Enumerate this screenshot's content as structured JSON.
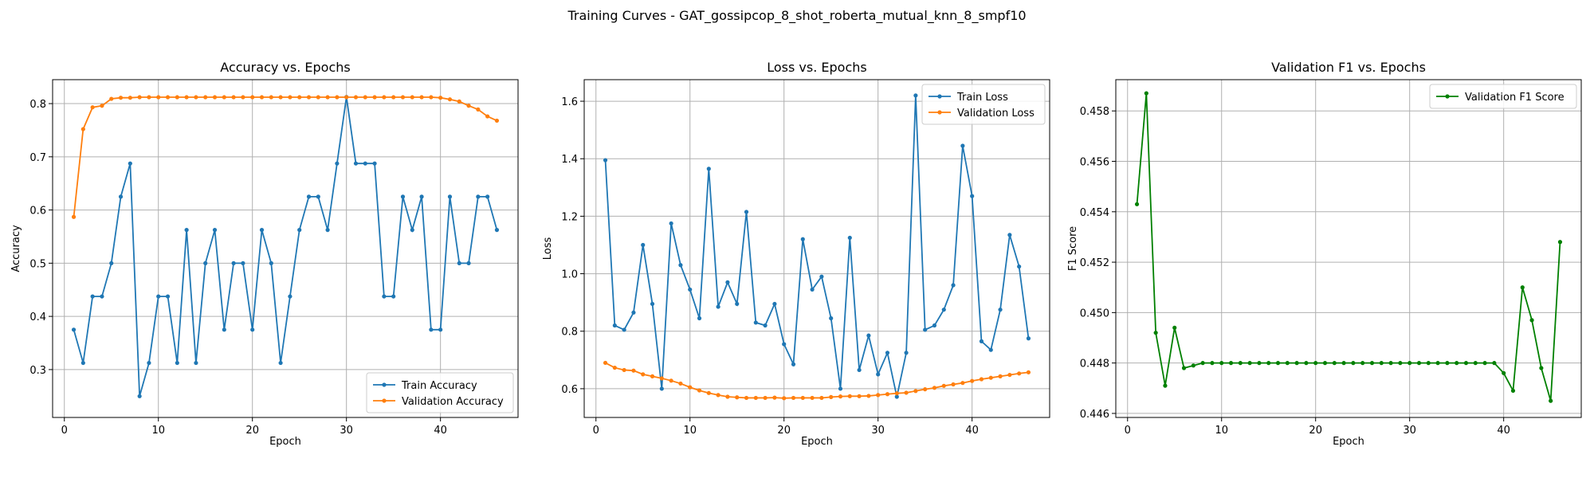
{
  "figure": {
    "title": "Training Curves - GAT_gossipcop_8_shot_roberta_mutual_knn_8_smpf10"
  },
  "colors": {
    "blue": "#1f77b4",
    "orange": "#ff7f0e",
    "green": "#008000"
  },
  "chart_data": [
    {
      "type": "line",
      "title": "Accuracy vs. Epochs",
      "xlabel": "Epoch",
      "ylabel": "Accuracy",
      "xlim": [
        -1.25,
        48.25
      ],
      "ylim": [
        0.21,
        0.845
      ],
      "xticks": [
        0,
        10,
        20,
        30,
        40
      ],
      "yticks": [
        0.3,
        0.4,
        0.5,
        0.6,
        0.7,
        0.8
      ],
      "ytick_labels": [
        "0.3",
        "0.4",
        "0.5",
        "0.6",
        "0.7",
        "0.8"
      ],
      "grid": true,
      "legend_position": "lower-right",
      "x": [
        1,
        2,
        3,
        4,
        5,
        6,
        7,
        8,
        9,
        10,
        11,
        12,
        13,
        14,
        15,
        16,
        17,
        18,
        19,
        20,
        21,
        22,
        23,
        24,
        25,
        26,
        27,
        28,
        29,
        30,
        31,
        32,
        33,
        34,
        35,
        36,
        37,
        38,
        39,
        40,
        41,
        42,
        43,
        44,
        45,
        46
      ],
      "series": [
        {
          "name": "Train Accuracy",
          "color": "#1f77b4",
          "values": [
            0.375,
            0.3125,
            0.4375,
            0.4375,
            0.5,
            0.625,
            0.6875,
            0.25,
            0.3125,
            0.4375,
            0.4375,
            0.3125,
            0.5625,
            0.3125,
            0.5,
            0.5625,
            0.375,
            0.5,
            0.5,
            0.375,
            0.5625,
            0.5,
            0.3125,
            0.4375,
            0.5625,
            0.625,
            0.625,
            0.5625,
            0.6875,
            0.8125,
            0.6875,
            0.6875,
            0.6875,
            0.4375,
            0.4375,
            0.625,
            0.5625,
            0.625,
            0.375,
            0.375,
            0.625,
            0.5,
            0.5,
            0.625,
            0.625,
            0.5625
          ]
        },
        {
          "name": "Validation Accuracy",
          "color": "#ff7f0e",
          "values": [
            0.587,
            0.752,
            0.793,
            0.796,
            0.809,
            0.811,
            0.811,
            0.812,
            0.812,
            0.812,
            0.812,
            0.812,
            0.812,
            0.812,
            0.812,
            0.812,
            0.812,
            0.812,
            0.812,
            0.812,
            0.812,
            0.812,
            0.812,
            0.812,
            0.812,
            0.812,
            0.812,
            0.812,
            0.812,
            0.812,
            0.812,
            0.812,
            0.812,
            0.812,
            0.812,
            0.812,
            0.812,
            0.812,
            0.812,
            0.811,
            0.808,
            0.804,
            0.796,
            0.789,
            0.776,
            0.768
          ]
        }
      ]
    },
    {
      "type": "line",
      "title": "Loss vs. Epochs",
      "xlabel": "Epoch",
      "ylabel": "Loss",
      "xlim": [
        -1.25,
        48.25
      ],
      "ylim": [
        0.5,
        1.675
      ],
      "xticks": [
        0,
        10,
        20,
        30,
        40
      ],
      "yticks": [
        0.6,
        0.8,
        1.0,
        1.2,
        1.4,
        1.6
      ],
      "ytick_labels": [
        "0.6",
        "0.8",
        "1.0",
        "1.2",
        "1.4",
        "1.6"
      ],
      "grid": true,
      "legend_position": "upper-right",
      "x": [
        1,
        2,
        3,
        4,
        5,
        6,
        7,
        8,
        9,
        10,
        11,
        12,
        13,
        14,
        15,
        16,
        17,
        18,
        19,
        20,
        21,
        22,
        23,
        24,
        25,
        26,
        27,
        28,
        29,
        30,
        31,
        32,
        33,
        34,
        35,
        36,
        37,
        38,
        39,
        40,
        41,
        42,
        43,
        44,
        45,
        46
      ],
      "series": [
        {
          "name": "Train Loss",
          "color": "#1f77b4",
          "values": [
            1.395,
            0.82,
            0.805,
            0.865,
            1.1,
            0.895,
            0.6,
            1.175,
            1.03,
            0.945,
            0.845,
            1.365,
            0.885,
            0.97,
            0.895,
            1.215,
            0.83,
            0.82,
            0.895,
            0.755,
            0.685,
            1.12,
            0.945,
            0.99,
            0.845,
            0.6,
            1.125,
            0.665,
            0.785,
            0.65,
            0.725,
            0.572,
            0.725,
            1.62,
            0.805,
            0.82,
            0.875,
            0.96,
            1.445,
            1.27,
            0.765,
            0.735,
            0.875,
            1.135,
            1.025,
            0.775
          ]
        },
        {
          "name": "Validation Loss",
          "color": "#ff7f0e",
          "values": [
            0.69,
            0.673,
            0.665,
            0.663,
            0.65,
            0.643,
            0.636,
            0.628,
            0.618,
            0.605,
            0.594,
            0.585,
            0.578,
            0.572,
            0.57,
            0.568,
            0.568,
            0.568,
            0.569,
            0.567,
            0.568,
            0.568,
            0.568,
            0.568,
            0.571,
            0.573,
            0.574,
            0.574,
            0.575,
            0.578,
            0.581,
            0.584,
            0.586,
            0.592,
            0.598,
            0.603,
            0.61,
            0.615,
            0.62,
            0.627,
            0.633,
            0.638,
            0.643,
            0.648,
            0.653,
            0.657
          ]
        }
      ]
    },
    {
      "type": "line",
      "title": "Validation F1 vs. Epochs",
      "xlabel": "Epoch",
      "ylabel": "F1 Score",
      "xlim": [
        -1.25,
        48.25
      ],
      "ylim": [
        0.44584,
        0.45924
      ],
      "xticks": [
        0,
        10,
        20,
        30,
        40
      ],
      "yticks": [
        0.446,
        0.448,
        0.45,
        0.452,
        0.454,
        0.456,
        0.458
      ],
      "ytick_labels": [
        "0.446",
        "0.448",
        "0.450",
        "0.452",
        "0.454",
        "0.456",
        "0.458"
      ],
      "grid": true,
      "legend_position": "upper-right",
      "x": [
        1,
        2,
        3,
        4,
        5,
        6,
        7,
        8,
        9,
        10,
        11,
        12,
        13,
        14,
        15,
        16,
        17,
        18,
        19,
        20,
        21,
        22,
        23,
        24,
        25,
        26,
        27,
        28,
        29,
        30,
        31,
        32,
        33,
        34,
        35,
        36,
        37,
        38,
        39,
        40,
        41,
        42,
        43,
        44,
        45,
        46
      ],
      "series": [
        {
          "name": "Validation F1 Score",
          "color": "#008000",
          "values": [
            0.4543,
            0.4587,
            0.4492,
            0.4471,
            0.4494,
            0.4478,
            0.4479,
            0.448,
            0.448,
            0.448,
            0.448,
            0.448,
            0.448,
            0.448,
            0.448,
            0.448,
            0.448,
            0.448,
            0.448,
            0.448,
            0.448,
            0.448,
            0.448,
            0.448,
            0.448,
            0.448,
            0.448,
            0.448,
            0.448,
            0.448,
            0.448,
            0.448,
            0.448,
            0.448,
            0.448,
            0.448,
            0.448,
            0.448,
            0.448,
            0.4476,
            0.4469,
            0.451,
            0.4497,
            0.4478,
            0.4465,
            0.4528
          ]
        }
      ]
    }
  ]
}
